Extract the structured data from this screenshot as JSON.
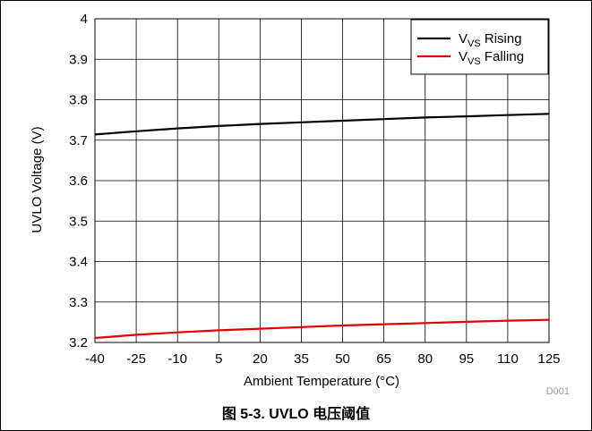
{
  "chart_data": {
    "type": "line",
    "xlabel": "Ambient Temperature (°C)",
    "ylabel": "UVLO Voltage (V)",
    "xlim": [
      -40,
      125
    ],
    "ylim": [
      3.2,
      4.0
    ],
    "x_ticks": [
      -40,
      -25,
      -10,
      5,
      20,
      35,
      50,
      65,
      80,
      95,
      110,
      125
    ],
    "y_ticks": [
      "3.2",
      "3.3",
      "3.4",
      "3.5",
      "3.6",
      "3.7",
      "3.8",
      "3.9",
      "4"
    ],
    "grid": true,
    "legend_position": "top-right",
    "series": [
      {
        "name": "VVS Rising",
        "name_main": "V",
        "name_sub": "VS",
        "name_rest": " Rising",
        "color": "#000000",
        "x": [
          -40,
          -25,
          -10,
          5,
          20,
          35,
          50,
          65,
          80,
          95,
          110,
          125
        ],
        "y": [
          3.714,
          3.722,
          3.729,
          3.735,
          3.74,
          3.744,
          3.748,
          3.752,
          3.756,
          3.759,
          3.762,
          3.765
        ]
      },
      {
        "name": "VVS Falling",
        "name_main": "V",
        "name_sub": "VS",
        "name_rest": " Falling",
        "color": "#e00000",
        "x": [
          -40,
          -25,
          -10,
          5,
          20,
          35,
          50,
          65,
          80,
          95,
          110,
          125
        ],
        "y": [
          3.211,
          3.219,
          3.225,
          3.23,
          3.234,
          3.238,
          3.242,
          3.245,
          3.248,
          3.251,
          3.254,
          3.256
        ]
      }
    ]
  },
  "figure_id": "D001",
  "caption": "图 5-3. UVLO 电压阈值"
}
